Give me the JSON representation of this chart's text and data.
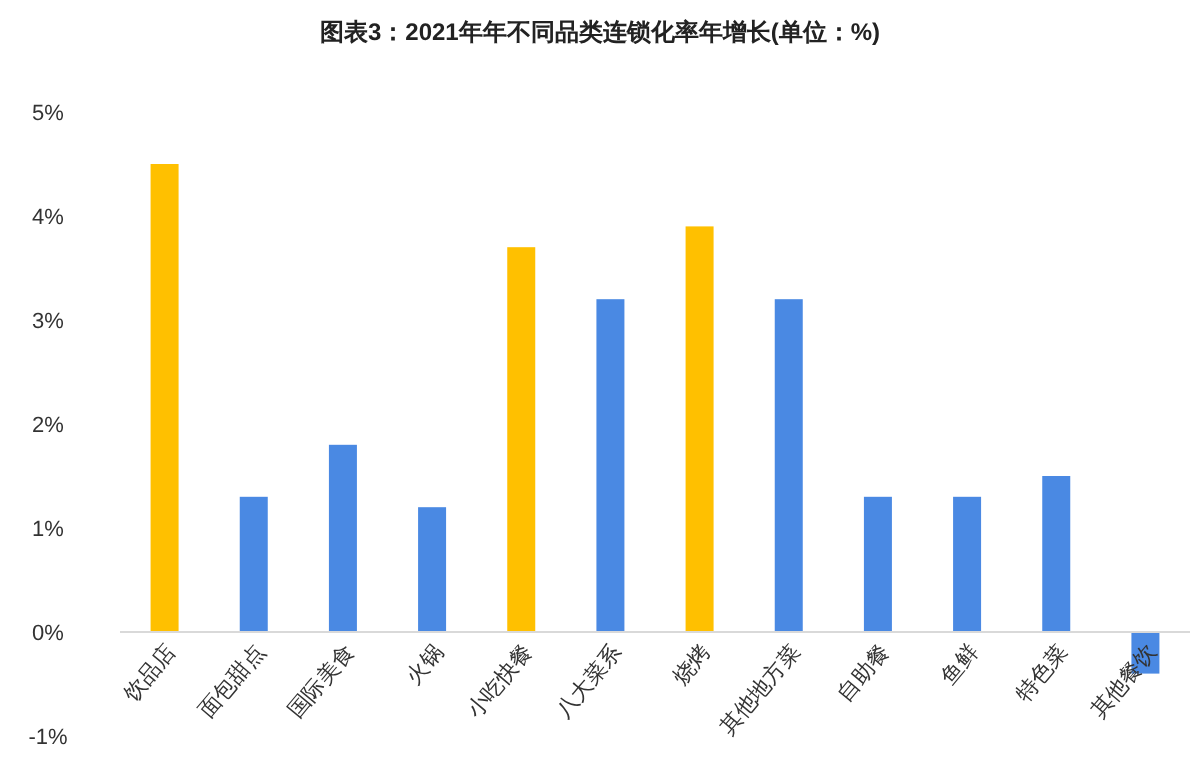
{
  "chart_data": {
    "type": "bar",
    "title": "图表3：2021年年不同品类连锁化率年增长(单位：%)",
    "categories": [
      "饮品店",
      "面包甜点",
      "国际美食",
      "火锅",
      "小吃快餐",
      "八大菜系",
      "烧烤",
      "其他地方菜",
      "自助餐",
      "鱼鲜",
      "特色菜",
      "其他餐饮"
    ],
    "values": [
      4.5,
      1.3,
      1.8,
      1.2,
      3.7,
      3.2,
      3.9,
      3.2,
      1.3,
      1.3,
      1.5,
      -0.4
    ],
    "colors": [
      "#ffc000",
      "#4a89e3",
      "#4a89e3",
      "#4a89e3",
      "#ffc000",
      "#4a89e3",
      "#ffc000",
      "#4a89e3",
      "#4a89e3",
      "#4a89e3",
      "#4a89e3",
      "#4a89e3"
    ],
    "ylim": [
      -1,
      5
    ],
    "yticks": [
      {
        "value": -1,
        "label": "-1%"
      },
      {
        "value": 0,
        "label": "0%"
      },
      {
        "value": 1,
        "label": "1%"
      },
      {
        "value": 2,
        "label": "2%"
      },
      {
        "value": 3,
        "label": "3%"
      },
      {
        "value": 4,
        "label": "4%"
      },
      {
        "value": 5,
        "label": "5%"
      }
    ],
    "grid": false
  }
}
